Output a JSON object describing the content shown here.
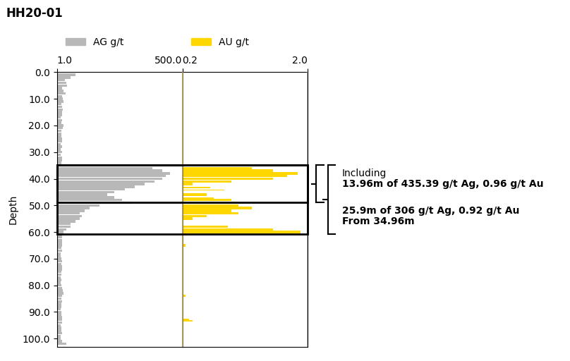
{
  "chart_data": [
    {
      "type": "bar",
      "orientation": "horizontal",
      "title": "HH20-01",
      "ylabel": "Depth",
      "series": [
        {
          "name": "AG g/t",
          "color": "#b8b8b8",
          "depth_from": [
            0.5,
            1.5,
            2.5,
            3.5,
            4.5,
            5.5,
            6.5,
            7.5,
            8.5,
            9.5,
            10.5,
            11.5,
            12.5,
            13.5,
            14.5,
            15.5,
            16.5,
            17.5,
            18.5,
            19.5,
            20.5,
            21.5,
            22.5,
            23.5,
            24.5,
            25.5,
            26.5,
            27.5,
            28.5,
            29.5,
            30.5,
            31.5,
            32.5,
            33.5,
            34.5,
            35.5,
            36.5,
            37.5,
            38.5,
            39.5,
            40.5,
            41.5,
            42.5,
            43.5,
            44.5,
            45.5,
            46.5,
            47.5,
            48.5,
            49.5,
            50.5,
            51.5,
            52.5,
            53.5,
            54.5,
            55.5,
            56.5,
            57.5,
            58.5,
            59.5,
            60.5,
            61.5,
            62.5,
            63.5,
            64.5,
            65.5,
            66.5,
            67.5,
            68.5,
            69.5,
            70.5,
            71.5,
            72.5,
            73.5,
            74.5,
            75.5,
            76.5,
            77.5,
            78.5,
            79.5,
            80.5,
            81.5,
            82.5,
            83.5,
            84.5,
            85.5,
            86.5,
            87.5,
            88.5,
            89.5,
            90.5,
            91.5,
            92.5,
            93.5,
            94.5,
            95.5,
            96.5,
            97.5,
            98.5,
            99.5,
            100.5,
            101.5
          ],
          "depth_to": [
            1.5,
            2.5,
            3.5,
            4.5,
            5.5,
            6.5,
            7.5,
            8.5,
            9.5,
            10.5,
            11.5,
            12.5,
            13.5,
            14.5,
            15.5,
            16.5,
            17.5,
            18.5,
            19.5,
            20.5,
            21.5,
            22.5,
            23.5,
            24.5,
            25.5,
            26.5,
            27.5,
            28.5,
            29.5,
            30.5,
            31.5,
            32.5,
            33.5,
            34.5,
            35.5,
            36.5,
            37.5,
            38.5,
            39.5,
            40.5,
            41.5,
            42.5,
            43.5,
            44.5,
            45.5,
            46.5,
            47.5,
            48.5,
            49.5,
            50.5,
            51.5,
            52.5,
            53.5,
            54.5,
            55.5,
            56.5,
            57.5,
            58.5,
            59.5,
            60.5,
            61.5,
            62.5,
            63.5,
            64.5,
            65.5,
            66.5,
            67.5,
            68.5,
            69.5,
            70.5,
            71.5,
            72.5,
            73.5,
            74.5,
            75.5,
            76.5,
            77.5,
            78.5,
            79.5,
            80.5,
            81.5,
            82.5,
            83.5,
            84.5,
            85.5,
            86.5,
            87.5,
            88.5,
            89.5,
            90.5,
            91.5,
            92.5,
            93.5,
            94.5,
            95.5,
            96.5,
            97.5,
            98.5,
            99.5,
            100.5,
            101.5,
            102.5
          ],
          "values": [
            75,
            55,
            32,
            38,
            42,
            22,
            28,
            35,
            20,
            25,
            28,
            18,
            22,
            25,
            20,
            22,
            15,
            22,
            18,
            28,
            25,
            18,
            18,
            18,
            22,
            20,
            15,
            20,
            15,
            20,
            15,
            20,
            20,
            18,
            300,
            380,
            420,
            450,
            435,
            420,
            390,
            350,
            310,
            270,
            230,
            200,
            230,
            260,
            300,
            170,
            130,
            110,
            90,
            100,
            90,
            75,
            55,
            55,
            38,
            28,
            20,
            22,
            20,
            22,
            20,
            18,
            20,
            15,
            15,
            18,
            20,
            18,
            20,
            22,
            18,
            18,
            15,
            18,
            15,
            18,
            22,
            25,
            28,
            22,
            18,
            20,
            18,
            18,
            15,
            18,
            18,
            22,
            22,
            20,
            15,
            18,
            18,
            20,
            15,
            15,
            20,
            38
          ]
        }
      ],
      "xlim": [
        1.0,
        500.0
      ],
      "xticks": [
        {
          "value": 1.0,
          "label": "1.0"
        },
        {
          "value": 500.0,
          "label": "500.0"
        }
      ],
      "ylim": [
        103.0,
        0.0
      ],
      "yticks": [
        {
          "value": 0.0,
          "label": "0.0"
        },
        {
          "value": 10.0,
          "label": "10.0"
        },
        {
          "value": 20.0,
          "label": "20.0"
        },
        {
          "value": 30.0,
          "label": "30.0"
        },
        {
          "value": 40.0,
          "label": "40.0"
        },
        {
          "value": 50.0,
          "label": "50.0"
        },
        {
          "value": 60.0,
          "label": "60.0"
        },
        {
          "value": 70.0,
          "label": "70.0"
        },
        {
          "value": 80.0,
          "label": "80.0"
        },
        {
          "value": 90.0,
          "label": "90.0"
        },
        {
          "value": 100.0,
          "label": "100.0"
        }
      ],
      "ref_lines": [
        {
          "value": 500.0,
          "color": "#999999"
        }
      ],
      "highlights": [
        {
          "from": 34.96,
          "to": 48.92,
          "labels": [
            "Including",
            "13.96m of 435.39 g/t Ag, 0.96 g/t Au"
          ]
        },
        {
          "from": 34.96,
          "to": 60.86,
          "labels": [
            "25.9m of 306 g/t Ag, 0.92 g/t Au",
            "From 34.96m"
          ]
        }
      ]
    },
    {
      "type": "bar",
      "orientation": "horizontal",
      "tick_labels": "x",
      "series": [
        {
          "name": "AU g/t",
          "color": "#FFD700",
          "depth_from": [
            34.5,
            35.5,
            36.5,
            37.5,
            38.5,
            39.5,
            40.5,
            41.5,
            43.0,
            44.0,
            45.5,
            47.0,
            47.5,
            48.5,
            49.5,
            50.5,
            51.5,
            52.5,
            53.5,
            54.5,
            57.5,
            58.5,
            59.5,
            64.5,
            83.5,
            92.5,
            93.0
          ],
          "depth_to": [
            35.5,
            36.5,
            37.5,
            38.5,
            39.5,
            40.5,
            41.5,
            42.5,
            43.5,
            44.5,
            46.5,
            47.5,
            48.5,
            49.5,
            50.5,
            51.5,
            52.5,
            53.5,
            54.5,
            55.5,
            58.5,
            59.5,
            60.5,
            65.5,
            84.5,
            93.0,
            93.5
          ],
          "values": [
            0.8,
            1.2,
            1.5,
            1.85,
            1.7,
            1.5,
            0.9,
            0.35,
            0.6,
            0.8,
            0.55,
            0.65,
            0.9,
            0.95,
            1.0,
            1.2,
            0.9,
            1.0,
            0.55,
            0.35,
            0.85,
            1.5,
            1.9,
            0.25,
            0.25,
            0.3,
            0.35
          ]
        }
      ],
      "xlim": [
        0.2,
        2.0
      ],
      "xticks": [
        {
          "value": 0.2,
          "label": "0.2"
        },
        {
          "value": 2.0,
          "label": "2.0"
        }
      ],
      "ylim": [
        103.0,
        0.0
      ],
      "ref_lines": [
        {
          "value": 0.2,
          "color": "#DAA520"
        },
        {
          "value": 2.0,
          "color": "#aaaaaa"
        }
      ]
    }
  ]
}
